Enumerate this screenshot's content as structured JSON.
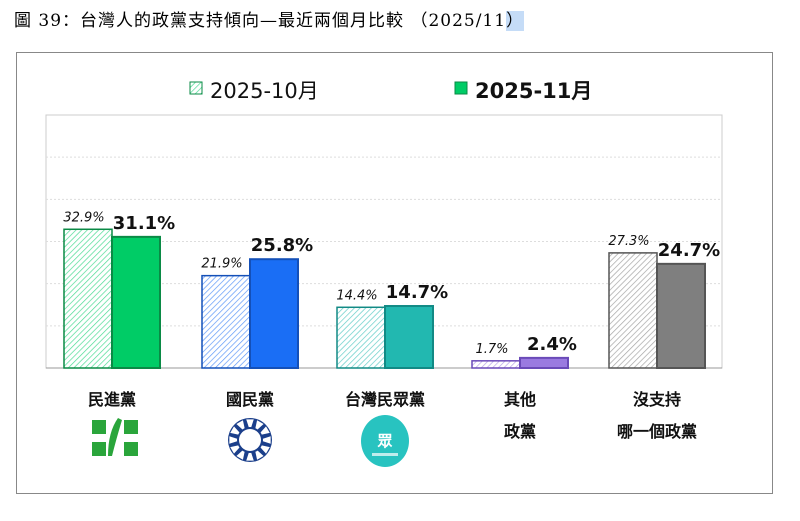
{
  "title": {
    "main": "圖 39：台灣人的政黨支持傾向—最近兩個月比較 （2025/11",
    "end": "）"
  },
  "chart_data": {
    "type": "bar",
    "title": "圖 39：台灣人的政黨支持傾向—最近兩個月比較 （2025/11）",
    "categories": [
      [
        "民進黨"
      ],
      [
        "國民黨"
      ],
      [
        "台灣民眾黨"
      ],
      [
        "其他",
        "政黨"
      ],
      [
        "沒支持",
        "哪一個政黨"
      ]
    ],
    "series": [
      {
        "name": "2025-10月",
        "values": [
          32.9,
          21.9,
          14.4,
          1.7,
          27.3
        ],
        "labels": [
          "32.9%",
          "21.9%",
          "14.4%",
          "1.7%",
          "27.3%"
        ],
        "style": "hatched"
      },
      {
        "name": "2025-11月",
        "values": [
          31.1,
          25.8,
          14.7,
          2.4,
          24.7
        ],
        "labels": [
          "31.1%",
          "25.8%",
          "14.7%",
          "2.4%",
          "24.7%"
        ],
        "style": "solid"
      }
    ],
    "colors": [
      "#00cc66",
      "#1a6ef5",
      "#22b8b0",
      "#9a7ae0",
      "#7f7f7f"
    ],
    "edge_colors": [
      "#0a8a45",
      "#1450b8",
      "#128a85",
      "#6a4ab8",
      "#555555"
    ],
    "ylim": [
      0,
      60
    ],
    "grid": true,
    "legend": "top-center",
    "logos": [
      "dpp-logo",
      "kmt-logo",
      "tpp-logo"
    ]
  }
}
